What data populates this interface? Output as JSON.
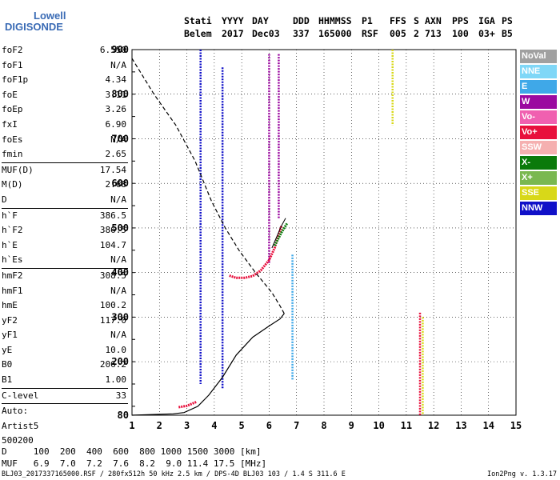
{
  "logo": {
    "line1": "Lowell",
    "line2": "DIGISONDE"
  },
  "header": {
    "row1": [
      "Stati",
      "YYYY",
      "DAY",
      "DDD",
      "HHMMSS",
      "P1",
      "FFS",
      "S",
      "AXN",
      "PPS",
      "IGA",
      "PS"
    ],
    "row2": [
      "Belem",
      "2017",
      "Dec03",
      "337",
      "165000",
      "RSF",
      "005",
      "2",
      "713",
      "100",
      "03+",
      "B5"
    ]
  },
  "params": {
    "group1": [
      {
        "name": "foF2",
        "value": "6.550"
      },
      {
        "name": "foF1",
        "value": "N/A"
      },
      {
        "name": "foF1p",
        "value": "4.34"
      },
      {
        "name": "foE",
        "value": "3.11"
      },
      {
        "name": "foEp",
        "value": "3.26"
      },
      {
        "name": "fxI",
        "value": "6.90"
      },
      {
        "name": "foEs",
        "value": "N/A"
      },
      {
        "name": "fmin",
        "value": "2.65"
      }
    ],
    "group2": [
      {
        "name": "MUF(D)",
        "value": "17.54"
      },
      {
        "name": "M(D)",
        "value": "2.68"
      },
      {
        "name": "D",
        "value": "N/A"
      }
    ],
    "group3": [
      {
        "name": "h`F",
        "value": "386.5"
      },
      {
        "name": "h`F2",
        "value": "386.5"
      },
      {
        "name": "h`E",
        "value": "104.7"
      },
      {
        "name": "h`Es",
        "value": "N/A"
      }
    ],
    "group4": [
      {
        "name": "hmF2",
        "value": "308.5"
      },
      {
        "name": "hmF1",
        "value": "N/A"
      },
      {
        "name": "hmE",
        "value": "100.2"
      },
      {
        "name": "yF2",
        "value": "117.0"
      },
      {
        "name": "yF1",
        "value": "N/A"
      },
      {
        "name": "yE",
        "value": "10.0"
      },
      {
        "name": "B0",
        "value": "206.2"
      },
      {
        "name": "B1",
        "value": "1.00"
      }
    ],
    "clevel": {
      "name": "C-level",
      "value": "33"
    },
    "scaling": [
      "Auto:",
      "Artist5",
      "500200"
    ]
  },
  "legend": [
    {
      "label": "NoVal",
      "color": "#a0a0a0"
    },
    {
      "label": "NNE",
      "color": "#7fd7f7"
    },
    {
      "label": "E",
      "color": "#3fa8e8"
    },
    {
      "label": "W",
      "color": "#9b0aa0"
    },
    {
      "label": "Vo-",
      "color": "#f060b0"
    },
    {
      "label": "Vo+",
      "color": "#e8103c"
    },
    {
      "label": "SSW",
      "color": "#f5b0b0"
    },
    {
      "label": "X-",
      "color": "#0a7a0a"
    },
    {
      "label": "X+",
      "color": "#7ab850"
    },
    {
      "label": "SSE",
      "color": "#d8d818"
    },
    {
      "label": "NNW",
      "color": "#1010c8"
    }
  ],
  "footer": {
    "d_row": "D     100  200  400  600  800 1000 1500 3000 [km]",
    "muf_row": "MUF   6.9  7.0  7.2  7.6  8.2  9.0 11.4 17.5 [MHz]",
    "file_info": "BLJ03_2017337165000.RSF / 280fx512h 50 kHz 2.5 km / DPS-4D BLJ03 103 / 1.4 S 311.6 E",
    "version": "Ion2Png v. 1.3.17"
  },
  "chart_data": {
    "type": "scatter",
    "xlim": [
      1,
      15
    ],
    "ylim": [
      80,
      900
    ],
    "x_ticks": [
      "1",
      "2",
      "3",
      "4",
      "5",
      "6",
      "7",
      "8",
      "9",
      "10",
      "11",
      "12",
      "13",
      "14",
      "15"
    ],
    "y_ticks": [
      "80",
      "200",
      "300",
      "400",
      "500",
      "600",
      "700",
      "800",
      "900"
    ],
    "grid": true,
    "profile_solid": [
      [
        1,
        80
      ],
      [
        2.5,
        83
      ],
      [
        2.9,
        86
      ],
      [
        3.4,
        100
      ],
      [
        3.8,
        125
      ],
      [
        4.3,
        165
      ],
      [
        4.8,
        215
      ],
      [
        5.4,
        255
      ],
      [
        6.0,
        280
      ],
      [
        6.4,
        296
      ],
      [
        6.55,
        308
      ]
    ],
    "profile_dashed": [
      [
        6.55,
        308
      ],
      [
        6.4,
        325
      ],
      [
        6.1,
        355
      ],
      [
        5.5,
        400
      ],
      [
        4.9,
        450
      ],
      [
        4.4,
        500
      ],
      [
        3.9,
        560
      ],
      [
        3.3,
        650
      ],
      [
        2.6,
        730
      ],
      [
        1.8,
        800
      ],
      [
        1.0,
        880
      ]
    ],
    "trace_vo_plus": [
      [
        4.55,
        393
      ],
      [
        4.8,
        388
      ],
      [
        5.1,
        388
      ],
      [
        5.4,
        392
      ],
      [
        5.7,
        405
      ],
      [
        6.0,
        428
      ],
      [
        6.2,
        455
      ],
      [
        6.45,
        505
      ]
    ],
    "trace_vo_plus_e": [
      [
        2.7,
        98
      ],
      [
        3.0,
        101
      ],
      [
        3.2,
        106
      ],
      [
        3.35,
        110
      ]
    ],
    "trace_x_minus": [
      [
        6.2,
        460
      ],
      [
        6.45,
        490
      ],
      [
        6.65,
        510
      ]
    ],
    "trace_line": [
      [
        6.1,
        455
      ],
      [
        6.45,
        505
      ],
      [
        6.6,
        522
      ]
    ],
    "vertical_bands": [
      {
        "x": 3.5,
        "y0": 150,
        "y1": 900,
        "color": "#1010c8"
      },
      {
        "x": 4.3,
        "y0": 140,
        "y1": 860,
        "color": "#1010c8"
      },
      {
        "x": 6.0,
        "y0": 420,
        "y1": 890,
        "color": "#9b0aa0"
      },
      {
        "x": 6.35,
        "y0": 520,
        "y1": 890,
        "color": "#9b0aa0"
      },
      {
        "x": 6.85,
        "y0": 160,
        "y1": 440,
        "color": "#3fa8e8"
      },
      {
        "x": 10.5,
        "y0": 730,
        "y1": 900,
        "color": "#d8d818"
      },
      {
        "x": 11.5,
        "y0": 80,
        "y1": 310,
        "color": "#e8103c"
      },
      {
        "x": 11.6,
        "y0": 80,
        "y1": 300,
        "color": "#d8d818"
      }
    ]
  }
}
